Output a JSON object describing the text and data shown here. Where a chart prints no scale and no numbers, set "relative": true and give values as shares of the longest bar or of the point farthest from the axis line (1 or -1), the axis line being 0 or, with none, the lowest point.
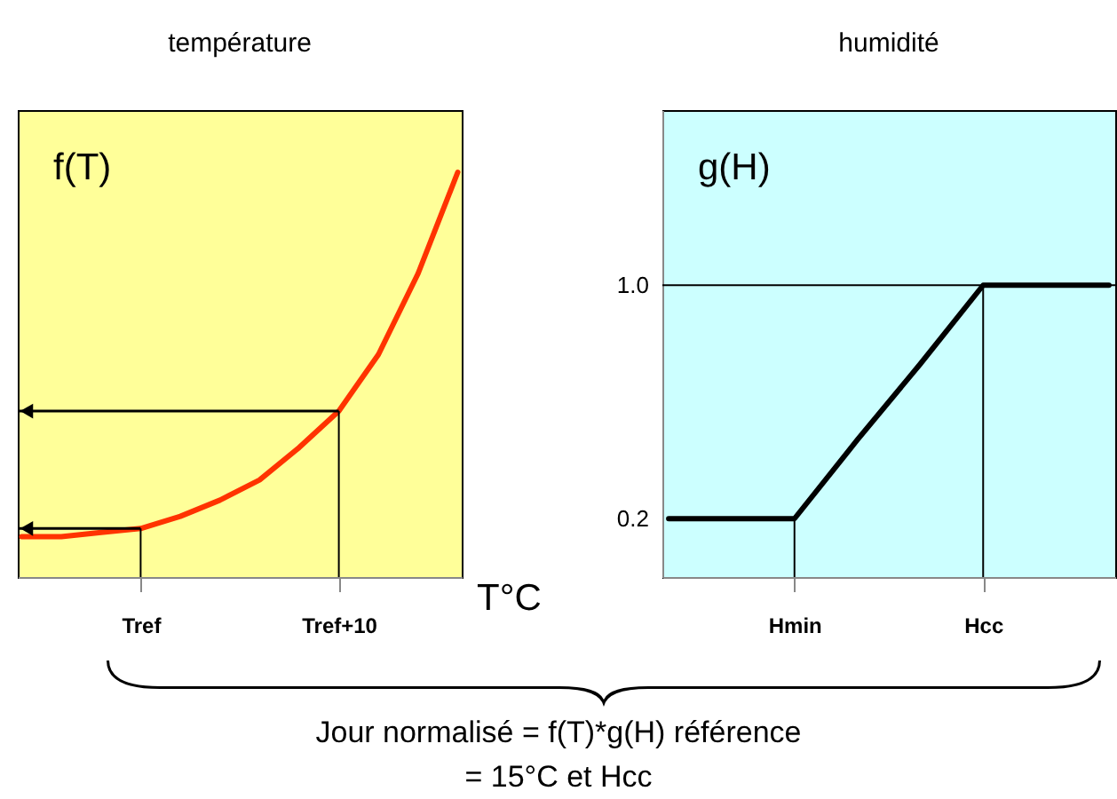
{
  "chart_data": [
    {
      "type": "line",
      "title": "température",
      "ylabel": "f(T)",
      "xlabel": "T°C",
      "relative": true,
      "categories": [
        null,
        null,
        null,
        "Tref",
        null,
        null,
        null,
        null,
        "Tref+10",
        null,
        null,
        null
      ],
      "series": [
        {
          "color": "#ff3300",
          "values": [
            0.1,
            0.1,
            0.11,
            0.12,
            0.15,
            0.19,
            0.24,
            0.32,
            0.41,
            0.55,
            0.75,
            1
          ]
        }
      ],
      "grid": false
    },
    {
      "type": "line",
      "title": "humidité",
      "ylabel": "g(H)",
      "categories": [
        null,
        null,
        "Hmin",
        null,
        null,
        "Hcc",
        null,
        null
      ],
      "series": [
        {
          "color": "#000000",
          "values": [
            0.2,
            0.2,
            0.2,
            0.47,
            0.73,
            1,
            1,
            1
          ]
        }
      ],
      "ylim": [
        0,
        1.6
      ],
      "yticks": [
        0.2,
        {
          "value": 1,
          "label": "1.0"
        }
      ],
      "ref_lines": [
        {
          "axis": "y",
          "value": 1,
          "color": "#000000"
        }
      ],
      "annotations": [
        "Jour normalisé = f(T)*g(H) référence\n= 15°C et Hcc"
      ],
      "grid": false
    }
  ]
}
